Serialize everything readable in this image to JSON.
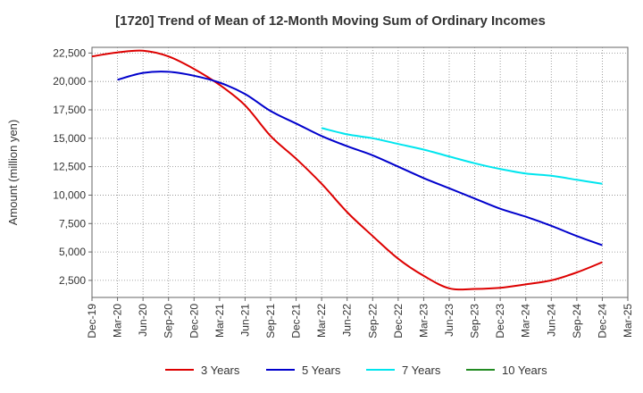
{
  "chart_data": {
    "type": "line",
    "title": "[1720]  Trend of Mean of 12-Month Moving Sum of Ordinary Incomes",
    "xlabel": "",
    "ylabel": "Amount (million yen)",
    "ylim": [
      1000,
      23000
    ],
    "yticks": [
      2500,
      5000,
      7500,
      10000,
      12500,
      15000,
      17500,
      20000,
      22500
    ],
    "ytick_labels": [
      "2,500",
      "5,000",
      "7,500",
      "10,000",
      "12,500",
      "15,000",
      "17,500",
      "20,000",
      "22,500"
    ],
    "x_categories": [
      "Dec-19",
      "Mar-20",
      "Jun-20",
      "Sep-20",
      "Dec-20",
      "Mar-21",
      "Jun-21",
      "Sep-21",
      "Dec-21",
      "Mar-22",
      "Jun-22",
      "Sep-22",
      "Dec-22",
      "Mar-23",
      "Jun-23",
      "Sep-23",
      "Dec-23",
      "Mar-24",
      "Jun-24",
      "Sep-24",
      "Dec-24",
      "Mar-25"
    ],
    "grid": true,
    "legend_position": "bottom",
    "series": [
      {
        "name": "3 Years",
        "color": "#dd0000",
        "values": [
          22200,
          22550,
          22700,
          22200,
          21100,
          19700,
          17900,
          15200,
          13200,
          11000,
          8500,
          6400,
          4400,
          2900,
          1800,
          1750,
          1850,
          2150,
          2500,
          3200,
          4100,
          null
        ]
      },
      {
        "name": "5 Years",
        "color": "#0000cc",
        "values": [
          null,
          20150,
          20750,
          20850,
          20500,
          19900,
          18900,
          17400,
          16300,
          15200,
          14300,
          13500,
          12500,
          11500,
          10600,
          9700,
          8800,
          8100,
          7300,
          6400,
          5600,
          null
        ]
      },
      {
        "name": "7 Years",
        "color": "#00e5ee",
        "values": [
          null,
          null,
          null,
          null,
          null,
          null,
          null,
          null,
          null,
          15900,
          15350,
          15000,
          14500,
          14000,
          13400,
          12800,
          12300,
          11900,
          11700,
          11350,
          11000,
          null
        ]
      },
      {
        "name": "10 Years",
        "color": "#228b22",
        "values": [
          null,
          null,
          null,
          null,
          null,
          null,
          null,
          null,
          null,
          null,
          null,
          null,
          null,
          null,
          null,
          null,
          null,
          null,
          null,
          null,
          null,
          null
        ]
      }
    ]
  }
}
